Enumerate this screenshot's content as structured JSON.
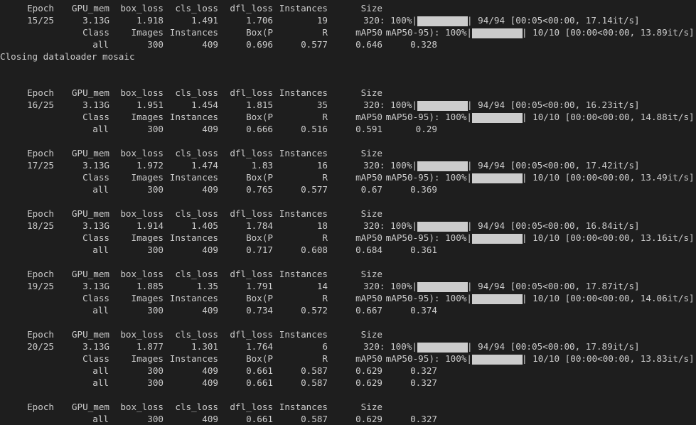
{
  "terminal": {
    "closing_message": "Closing dataloader mosaic",
    "train_header": {
      "epoch": "Epoch",
      "gpu_mem": "GPU_mem",
      "box_loss": "box_loss",
      "cls_loss": "cls_loss",
      "dfl_loss": "dfl_loss",
      "instances": "Instances",
      "size": "Size"
    },
    "val_header": {
      "class": "Class",
      "images": "Images",
      "instances": "Instances",
      "box_p": "Box(P",
      "r": "R",
      "map50": "mAP50",
      "map50_95": "mAP50-95): 100%|"
    },
    "epochs": [
      {
        "epoch": "15/25",
        "gpu_mem": "3.13G",
        "box_loss": "1.918",
        "cls_loss": "1.491",
        "dfl_loss": "1.706",
        "instances": "19",
        "size": "320: 100%|",
        "train_progress": 1.0,
        "train_stats": "| 94/94 [00:05<00:00, 17.14it/s]",
        "val_progress": 1.0,
        "val_stats": "| 10/10 [00:00<00:00, 13.89it/s]",
        "val": {
          "cls": "all",
          "images": "300",
          "instances": "409",
          "p": "0.696",
          "r": "0.577",
          "map50": "0.646",
          "map50_95": "0.328"
        }
      },
      {
        "epoch": "16/25",
        "gpu_mem": "3.13G",
        "box_loss": "1.951",
        "cls_loss": "1.454",
        "dfl_loss": "1.815",
        "instances": "35",
        "size": "320: 100%|",
        "train_progress": 1.0,
        "train_stats": "| 94/94 [00:05<00:00, 16.23it/s]",
        "val_progress": 1.0,
        "val_stats": "| 10/10 [00:00<00:00, 14.88it/s]",
        "val": {
          "cls": "all",
          "images": "300",
          "instances": "409",
          "p": "0.666",
          "r": "0.516",
          "map50": "0.591",
          "map50_95": "0.29"
        }
      },
      {
        "epoch": "17/25",
        "gpu_mem": "3.13G",
        "box_loss": "1.972",
        "cls_loss": "1.474",
        "dfl_loss": "1.83",
        "instances": "16",
        "size": "320: 100%|",
        "train_progress": 1.0,
        "train_stats": "| 94/94 [00:05<00:00, 17.42it/s]",
        "val_progress": 1.0,
        "val_stats": "| 10/10 [00:00<00:00, 13.49it/s]",
        "val": {
          "cls": "all",
          "images": "300",
          "instances": "409",
          "p": "0.765",
          "r": "0.577",
          "map50": "0.67",
          "map50_95": "0.369"
        }
      },
      {
        "epoch": "18/25",
        "gpu_mem": "3.13G",
        "box_loss": "1.914",
        "cls_loss": "1.405",
        "dfl_loss": "1.784",
        "instances": "18",
        "size": "320: 100%|",
        "train_progress": 1.0,
        "train_stats": "| 94/94 [00:05<00:00, 16.84it/s]",
        "val_progress": 1.0,
        "val_stats": "| 10/10 [00:00<00:00, 13.16it/s]",
        "val": {
          "cls": "all",
          "images": "300",
          "instances": "409",
          "p": "0.717",
          "r": "0.608",
          "map50": "0.684",
          "map50_95": "0.361"
        }
      },
      {
        "epoch": "19/25",
        "gpu_mem": "3.13G",
        "box_loss": "1.885",
        "cls_loss": "1.35",
        "dfl_loss": "1.791",
        "instances": "14",
        "size": "320: 100%|",
        "train_progress": 1.0,
        "train_stats": "| 94/94 [00:05<00:00, 17.87it/s]",
        "val_progress": 1.0,
        "val_stats": "| 10/10 [00:00<00:00, 14.06it/s]",
        "val": {
          "cls": "all",
          "images": "300",
          "instances": "409",
          "p": "0.734",
          "r": "0.572",
          "map50": "0.667",
          "map50_95": "0.374"
        }
      },
      {
        "epoch": "20/25",
        "gpu_mem": "3.13G",
        "box_loss": "1.877",
        "cls_loss": "1.301",
        "dfl_loss": "1.764",
        "instances": "6",
        "size": "320: 100%|",
        "train_progress": 1.0,
        "train_stats": "| 94/94 [00:05<00:00, 17.89it/s]",
        "val_progress": 1.0,
        "val_stats": "| 10/10 [00:00<00:00, 13.83it/s]",
        "val": {
          "cls": "all",
          "images": "300",
          "instances": "409",
          "p": "0.661",
          "r": "0.587",
          "map50": "0.629",
          "map50_95": "0.327"
        }
      }
    ],
    "final_summary": {
      "cls": "all",
      "images": "300",
      "instances": "409",
      "p": "0.661",
      "r": "0.587",
      "map50": "0.629",
      "map50_95": "0.327"
    },
    "trailing_summary": {
      "cls": "all",
      "images": "300",
      "instances": "409",
      "p": "0.661",
      "r": "0.587",
      "map50": "0.629",
      "map50_95": "0.327"
    }
  }
}
